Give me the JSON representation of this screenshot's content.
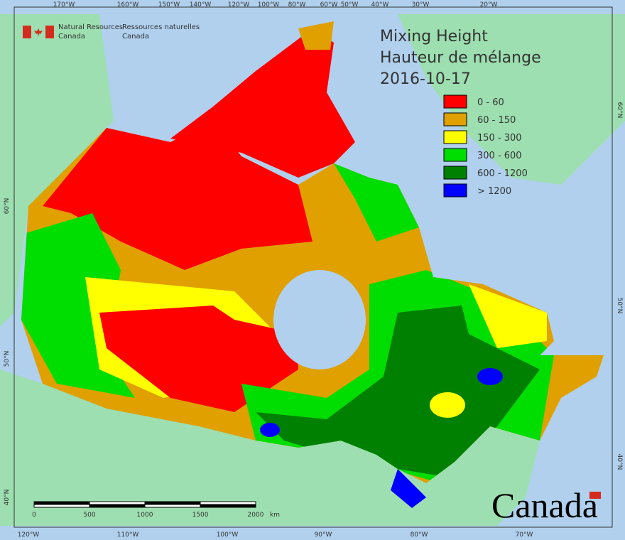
{
  "header": {
    "agency_en": [
      "Natural Resources",
      "Canada"
    ],
    "agency_fr": [
      "Ressources naturelles",
      "Canada"
    ]
  },
  "title": [
    "Mixing Height",
    "Hauteur de mélange",
    "2016-10-17"
  ],
  "legend": [
    {
      "label": "0 - 60",
      "color": "#ff0000"
    },
    {
      "label": "60 - 150",
      "color": "#e0a000"
    },
    {
      "label": "150 - 300",
      "color": "#ffff00"
    },
    {
      "label": "300 - 600",
      "color": "#00dd00"
    },
    {
      "label": "600 - 1200",
      "color": "#008000"
    },
    {
      "label": "> 1200",
      "color": "#0000ff"
    }
  ],
  "graticule": {
    "top": [
      "170°W",
      "160°W",
      "150°W",
      "140°W",
      "120°W",
      "100°W",
      "80°W",
      "60°W",
      "50°W",
      "40°W",
      "30°W",
      "20°W"
    ],
    "bottom": [
      "120°W",
      "110°W",
      "100°W",
      "90°W",
      "80°W",
      "70°W"
    ],
    "left": [
      "60°N",
      "50°N",
      "40°N"
    ],
    "right": [
      "60°N",
      "50°N",
      "40°N"
    ]
  },
  "scale_bar": {
    "labels": [
      "0",
      "500",
      "1000",
      "1500",
      "2000"
    ],
    "unit": "km"
  },
  "wordmark": "Canada"
}
